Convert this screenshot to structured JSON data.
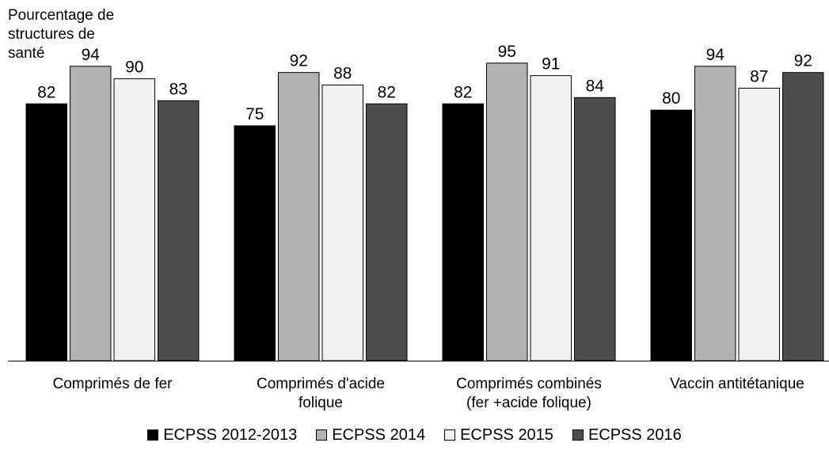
{
  "chart_data": {
    "type": "bar",
    "ylabel": "Pourcentage de\nstructures de\nsanté",
    "xlabel": "",
    "categories": [
      "Comprimés de fer",
      "Comprimés d'acide\nfolique",
      "Comprimés combinés\n(fer +acide folique)",
      "Vaccin antitétanique"
    ],
    "series": [
      {
        "name": "ECPSS 2012-2013",
        "color": "#000000",
        "values": [
          82,
          75,
          82,
          80
        ]
      },
      {
        "name": "ECPSS 2014",
        "color": "#b2b2b2",
        "values": [
          94,
          92,
          95,
          94
        ]
      },
      {
        "name": "ECPSS 2015",
        "color": "#f2f2f2",
        "values": [
          90,
          88,
          91,
          87
        ]
      },
      {
        "name": "ECPSS 2016",
        "color": "#4d4d4d",
        "values": [
          83,
          82,
          84,
          92
        ]
      }
    ],
    "ylim": [
      0,
      100
    ],
    "grid": false,
    "legend_position": "bottom"
  }
}
